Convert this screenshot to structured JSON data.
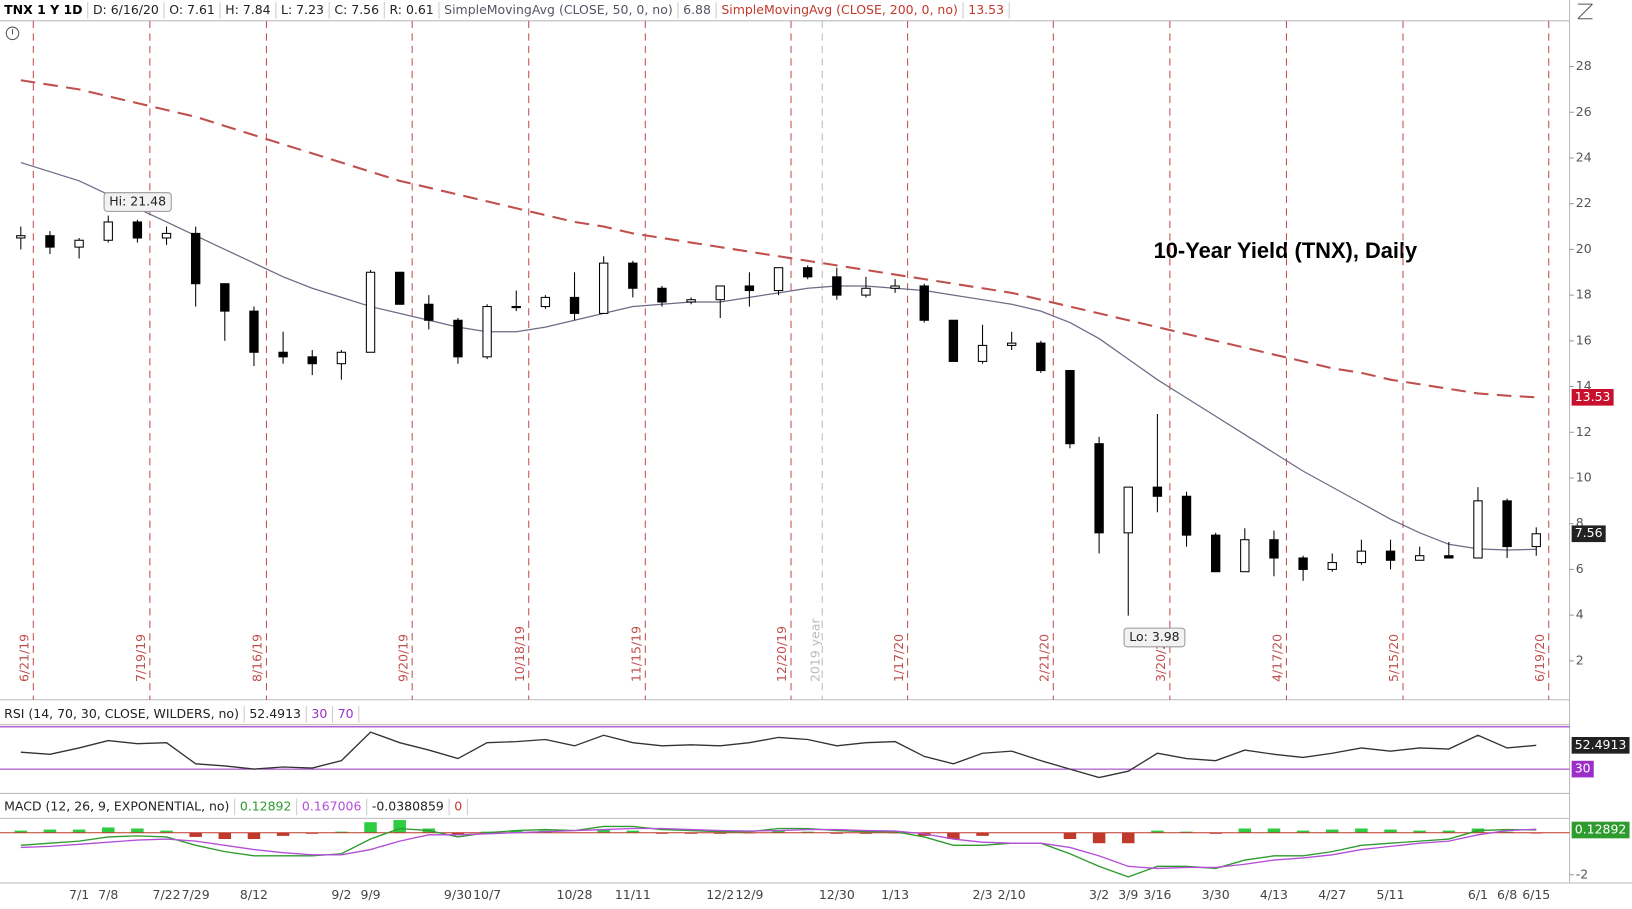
{
  "chart_data": [
    {
      "type": "candlestick",
      "title": "10-Year Yield (TNX), Daily",
      "header": [
        {
          "text": "TNX 1 Y 1D",
          "color": "#000000"
        },
        {
          "text": "D: 6/16/20",
          "color": "#222222"
        },
        {
          "text": "O: 7.61",
          "color": "#222222"
        },
        {
          "text": "H: 7.84",
          "color": "#222222"
        },
        {
          "text": "L: 7.23",
          "color": "#222222"
        },
        {
          "text": "C: 7.56",
          "color": "#222222"
        },
        {
          "text": "R: 0.61",
          "color": "#222222"
        },
        {
          "text": "SimpleMovingAvg (CLOSE, 50, 0, no)",
          "color": "#555566"
        },
        {
          "text": "6.88",
          "color": "#555566"
        },
        {
          "text": "SimpleMovingAvg (CLOSE, 200, 0, no)",
          "color": "#c0392b"
        },
        {
          "text": "13.53",
          "color": "#c0392b"
        }
      ],
      "categories": [
        null,
        null,
        "7/1",
        "7/8",
        null,
        "7/22",
        "7/29",
        null,
        "8/12",
        null,
        null,
        "9/2",
        "9/9",
        null,
        null,
        "9/30",
        "10/7",
        null,
        null,
        "10/28",
        null,
        "11/11",
        null,
        null,
        "12/2",
        "12/9",
        null,
        null,
        "12/30",
        null,
        "1/13",
        null,
        null,
        "2/3",
        "2/10",
        null,
        null,
        "3/2",
        "3/9",
        "3/16",
        null,
        "3/30",
        null,
        "4/13",
        null,
        "4/27",
        null,
        "5/11",
        null,
        null,
        "6/1",
        "6/8",
        "6/15"
      ],
      "open": [
        20.5,
        20.6,
        20.1,
        20.4,
        21.2,
        20.5,
        20.7,
        18.5,
        17.3,
        15.5,
        15.3,
        15.0,
        15.5,
        19.0,
        17.6,
        16.9,
        15.3,
        17.5,
        17.5,
        17.9,
        17.2,
        19.4,
        18.3,
        17.7,
        17.8,
        18.4,
        18.2,
        19.2,
        18.8,
        18.0,
        18.3,
        18.4,
        16.9,
        15.1,
        15.8,
        15.9,
        14.7,
        11.5,
        7.6,
        9.6,
        9.2,
        7.5,
        5.9,
        7.3,
        6.5,
        6.0,
        6.3,
        6.8,
        6.4,
        6.6,
        6.5,
        9.0,
        7.0
      ],
      "high": [
        21.0,
        20.8,
        20.5,
        21.48,
        21.3,
        21.0,
        21.0,
        18.5,
        17.5,
        16.4,
        15.6,
        15.6,
        19.1,
        19.0,
        18.0,
        17.0,
        17.6,
        18.2,
        18.0,
        19.0,
        19.7,
        19.5,
        18.4,
        17.9,
        18.4,
        19.0,
        19.2,
        19.3,
        19.2,
        18.8,
        18.7,
        18.5,
        16.9,
        16.7,
        16.4,
        16.0,
        14.7,
        11.8,
        9.6,
        12.8,
        9.4,
        7.6,
        7.8,
        7.7,
        6.6,
        6.7,
        7.3,
        7.3,
        7.0,
        7.2,
        9.6,
        9.1,
        7.84
      ],
      "low": [
        20.0,
        19.8,
        19.6,
        20.3,
        20.3,
        20.2,
        17.5,
        16.0,
        14.9,
        15.0,
        14.5,
        14.3,
        15.5,
        17.6,
        16.5,
        15.0,
        15.2,
        17.3,
        17.4,
        16.9,
        17.2,
        17.9,
        17.5,
        17.6,
        17.0,
        17.5,
        18.0,
        18.7,
        17.8,
        17.9,
        18.1,
        16.8,
        15.1,
        15.0,
        15.6,
        14.6,
        11.3,
        6.7,
        3.98,
        8.5,
        7.0,
        5.9,
        5.9,
        5.7,
        5.5,
        5.9,
        6.2,
        6.0,
        6.4,
        6.5,
        6.5,
        6.5,
        6.6
      ],
      "close": [
        20.6,
        20.1,
        20.4,
        21.2,
        20.5,
        20.7,
        18.5,
        17.3,
        15.5,
        15.3,
        15.0,
        15.5,
        19.0,
        17.6,
        16.9,
        15.3,
        17.5,
        17.5,
        17.9,
        17.2,
        19.4,
        18.3,
        17.7,
        17.8,
        18.4,
        18.2,
        19.2,
        18.8,
        18.0,
        18.3,
        18.4,
        16.9,
        15.1,
        15.8,
        15.9,
        14.7,
        11.5,
        7.6,
        9.6,
        9.2,
        7.5,
        5.9,
        7.3,
        6.5,
        6.0,
        6.3,
        6.8,
        6.4,
        6.6,
        6.5,
        9.0,
        7.0,
        7.56
      ],
      "up_color": "#ffffff",
      "down_color": "#000000",
      "series": [
        {
          "color": "#6b6b85",
          "dashed": false,
          "values": [
            23.8,
            23.4,
            23.0,
            22.4,
            21.8,
            21.2,
            20.6,
            20.0,
            19.4,
            18.8,
            18.3,
            17.9,
            17.5,
            17.2,
            16.9,
            16.6,
            16.4,
            16.4,
            16.6,
            16.9,
            17.2,
            17.5,
            17.6,
            17.7,
            17.7,
            17.9,
            18.1,
            18.3,
            18.4,
            18.4,
            18.3,
            18.2,
            18.0,
            17.8,
            17.6,
            17.3,
            16.8,
            16.1,
            15.2,
            14.3,
            13.5,
            12.7,
            11.9,
            11.1,
            10.3,
            9.6,
            8.9,
            8.2,
            7.6,
            7.1,
            6.9,
            6.85,
            6.88
          ]
        },
        {
          "color": "#c0504d",
          "dashed": true,
          "values": [
            27.4,
            27.2,
            27.0,
            26.7,
            26.4,
            26.1,
            25.8,
            25.4,
            25.0,
            24.6,
            24.2,
            23.8,
            23.4,
            23.0,
            22.7,
            22.4,
            22.1,
            21.8,
            21.5,
            21.2,
            21.0,
            20.7,
            20.5,
            20.3,
            20.1,
            19.9,
            19.7,
            19.5,
            19.3,
            19.1,
            18.9,
            18.7,
            18.5,
            18.3,
            18.1,
            17.8,
            17.5,
            17.2,
            16.9,
            16.6,
            16.3,
            16.0,
            15.7,
            15.4,
            15.1,
            14.8,
            14.6,
            14.3,
            14.1,
            13.9,
            13.7,
            13.6,
            13.53
          ]
        }
      ],
      "ylim": [
        0.3,
        30
      ],
      "yticks": [
        2,
        4,
        6,
        8,
        10,
        12,
        14,
        16,
        18,
        20,
        22,
        24,
        26,
        28
      ],
      "annotations": [
        "Hi: 21.48",
        "Lo: 3.98"
      ],
      "price_labels": [
        13.53,
        7.56
      ],
      "price_label_colors": [
        "#c8102e",
        "#222222"
      ],
      "expiration_labels": [
        "6/21/19",
        "7/19/19",
        "8/16/19",
        "9/20/19",
        "10/18/19",
        "11/15/19",
        "12/20/19",
        "1/17/20",
        "2/21/20",
        "3/20/20",
        "4/17/20",
        "5/15/20",
        "6/19/20"
      ],
      "expiration_color": "#c0504d",
      "year_label": "2019 year"
    },
    {
      "type": "line",
      "header": [
        {
          "text": "RSI (14, 70, 30, CLOSE, WILDERS, no)",
          "color": "#222222"
        },
        {
          "text": "52.4913",
          "color": "#222222"
        },
        {
          "text": "30",
          "color": "#9b30c8"
        },
        {
          "text": "70",
          "color": "#9b30c8"
        }
      ],
      "values": [
        46,
        44,
        50,
        57,
        54,
        55,
        35,
        33,
        30,
        32,
        31,
        38,
        65,
        55,
        48,
        40,
        55,
        56,
        58,
        52,
        62,
        55,
        52,
        53,
        52,
        55,
        60,
        58,
        52,
        55,
        56,
        42,
        35,
        45,
        47,
        38,
        30,
        22,
        28,
        45,
        40,
        38,
        48,
        44,
        41,
        45,
        50,
        47,
        50,
        49,
        62,
        50,
        52.4913
      ],
      "color": "#333333",
      "low_color": "#2e9b2e",
      "levels": [
        70,
        30
      ],
      "level_color": "#9b30c8",
      "ylim": [
        7,
        72
      ],
      "badges": [
        52.4913,
        30
      ],
      "badge_colors": [
        "#222222",
        "#9b30c8"
      ]
    },
    {
      "type": "combo",
      "header": [
        {
          "text": "MACD (12, 26, 9, EXPONENTIAL, no)",
          "color": "#222222"
        },
        {
          "text": "0.12892",
          "color": "#2e9b2e"
        },
        {
          "text": "0.167006",
          "color": "#b44fd8"
        },
        {
          "text": "-0.0380859",
          "color": "#222222"
        },
        {
          "text": "0",
          "color": "#c0392b"
        }
      ],
      "series": [
        {
          "color": "#2e9b2e",
          "values": [
            -0.6,
            -0.5,
            -0.4,
            -0.2,
            -0.15,
            -0.2,
            -0.6,
            -0.9,
            -1.1,
            -1.1,
            -1.1,
            -1.0,
            -0.3,
            0.2,
            0.1,
            -0.2,
            0.0,
            0.1,
            0.15,
            0.1,
            0.3,
            0.3,
            0.15,
            0.1,
            0.05,
            0.05,
            0.2,
            0.2,
            0.1,
            0.05,
            0.05,
            -0.2,
            -0.6,
            -0.6,
            -0.5,
            -0.5,
            -1.0,
            -1.6,
            -2.1,
            -1.6,
            -1.6,
            -1.7,
            -1.3,
            -1.1,
            -1.1,
            -0.9,
            -0.6,
            -0.5,
            -0.4,
            -0.3,
            0.1,
            0.15,
            0.12892
          ]
        },
        {
          "color": "#b44fd8",
          "values": [
            -0.7,
            -0.65,
            -0.55,
            -0.45,
            -0.35,
            -0.3,
            -0.4,
            -0.6,
            -0.8,
            -0.95,
            -1.05,
            -1.05,
            -0.8,
            -0.4,
            -0.1,
            -0.1,
            -0.05,
            0.0,
            0.05,
            0.1,
            0.15,
            0.2,
            0.2,
            0.15,
            0.1,
            0.08,
            0.1,
            0.15,
            0.15,
            0.1,
            0.08,
            -0.05,
            -0.3,
            -0.45,
            -0.5,
            -0.5,
            -0.7,
            -1.1,
            -1.6,
            -1.7,
            -1.65,
            -1.65,
            -1.5,
            -1.3,
            -1.2,
            -1.05,
            -0.8,
            -0.65,
            -0.5,
            -0.4,
            -0.1,
            0.1,
            0.167006
          ]
        }
      ],
      "histogram": [
        0.1,
        0.15,
        0.15,
        0.25,
        0.2,
        0.1,
        -0.2,
        -0.3,
        -0.3,
        -0.15,
        -0.05,
        0.05,
        0.5,
        0.6,
        0.2,
        -0.1,
        0.05,
        0.1,
        0.1,
        0.0,
        0.15,
        0.1,
        -0.05,
        -0.05,
        -0.05,
        -0.03,
        0.1,
        0.05,
        -0.05,
        -0.05,
        -0.03,
        -0.15,
        -0.3,
        -0.15,
        0.0,
        0.0,
        -0.3,
        -0.5,
        -0.5,
        0.1,
        0.05,
        -0.05,
        0.2,
        0.2,
        0.1,
        0.15,
        0.2,
        0.15,
        0.1,
        0.1,
        0.2,
        0.05,
        -0.0380859
      ],
      "hist_up_color": "#2ecc40",
      "hist_down_color": "#c0392b",
      "zero_color": "#c0392b",
      "ylim": [
        -2.39,
        0.68
      ],
      "yticks": [
        -2
      ],
      "badge": 0.12892,
      "badge_color": "#2e9b2e"
    }
  ]
}
